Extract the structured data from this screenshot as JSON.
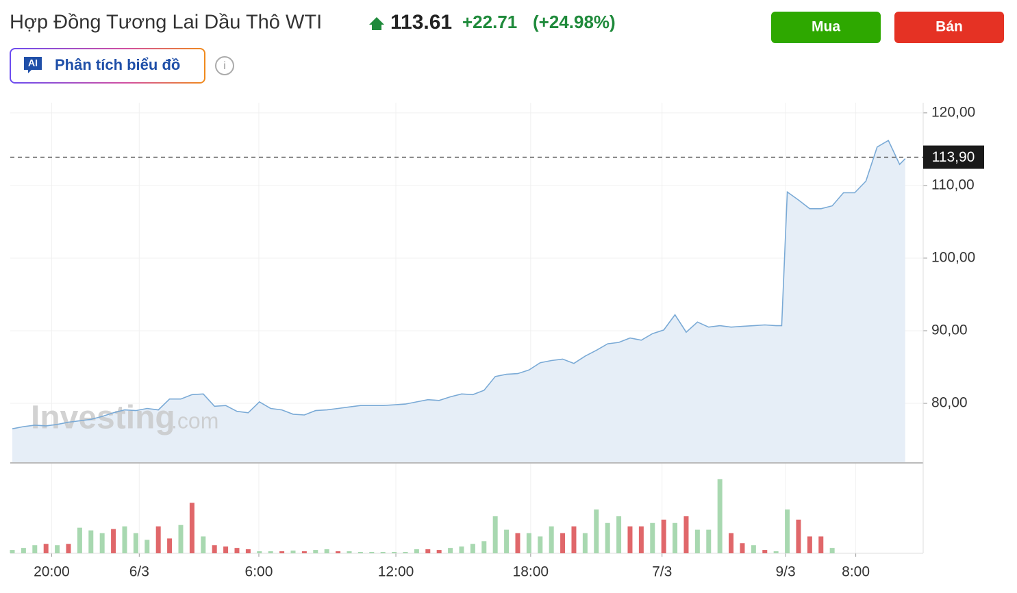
{
  "header": {
    "title": "Hợp Đồng Tương Lai Dầu Thô WTI",
    "price": "113.61",
    "change": "+22.71",
    "change_percent": "(+24.98%)",
    "buy": "Mua",
    "sell": "Bán",
    "ai_badge": "AI",
    "ai_button": "Phân tích biểu đồ",
    "info": "i"
  },
  "chart_data": {
    "type": "line",
    "color": "#7aaad6",
    "fill": "#e6eef7",
    "grid": true,
    "watermark": {
      "brand": "Investing",
      "suffix": ".com"
    },
    "x": [
      0,
      2,
      4,
      6,
      8,
      10,
      12,
      14,
      16,
      18,
      20,
      22,
      24,
      26,
      28,
      30,
      32,
      34,
      36,
      38,
      40,
      42,
      44,
      46,
      48,
      50,
      52,
      54,
      56,
      58,
      60,
      62,
      64,
      66,
      68,
      70,
      72,
      74,
      76,
      78,
      80,
      82,
      84,
      86,
      88,
      90,
      92,
      94,
      96,
      98,
      100,
      102,
      104,
      106,
      108,
      110,
      112,
      114,
      116,
      118,
      120,
      122,
      124,
      126,
      128,
      130,
      132,
      134,
      136,
      137,
      138,
      140,
      142,
      144,
      146,
      148,
      150,
      152,
      154,
      156,
      158,
      159
    ],
    "values": [
      76.5,
      76.8,
      77.0,
      76.9,
      77.1,
      77.4,
      77.6,
      77.8,
      78.2,
      78.7,
      79.1,
      79.0,
      79.3,
      79.1,
      80.6,
      80.6,
      81.2,
      81.3,
      79.6,
      79.7,
      78.9,
      78.7,
      80.2,
      79.3,
      79.1,
      78.5,
      78.4,
      79.0,
      79.1,
      79.3,
      79.5,
      79.7,
      79.7,
      79.7,
      79.8,
      79.9,
      80.2,
      80.5,
      80.4,
      80.9,
      81.3,
      81.2,
      81.8,
      83.7,
      84.0,
      84.1,
      84.6,
      85.6,
      85.9,
      86.1,
      85.5,
      86.5,
      87.3,
      88.2,
      88.4,
      89.0,
      88.7,
      89.6,
      90.1,
      92.2,
      89.8,
      91.2,
      90.5,
      90.7,
      90.5,
      90.6,
      90.7,
      90.8,
      90.7,
      90.7,
      109.1,
      108.0,
      106.8,
      106.8,
      107.2,
      109.0,
      109.0,
      110.6,
      115.3,
      116.2,
      112.9,
      113.7
    ],
    "xlim": [
      0,
      162.2
    ],
    "ylim": [
      71.8,
      121.4
    ],
    "xticks": [
      {
        "value": 7,
        "label": "20:00"
      },
      {
        "value": 22.6,
        "label": "6/3"
      },
      {
        "value": 43.9,
        "label": "6:00"
      },
      {
        "value": 68.3,
        "label": "12:00"
      },
      {
        "value": 92.3,
        "label": "18:00"
      },
      {
        "value": 115.7,
        "label": "7/3"
      },
      {
        "value": 137.7,
        "label": "9/3"
      },
      {
        "value": 150.2,
        "label": "8:00"
      }
    ],
    "yticks": [
      {
        "value": 80,
        "label": "80,00"
      },
      {
        "value": 90,
        "label": "90,00"
      },
      {
        "value": 100,
        "label": "100,00"
      },
      {
        "value": 110,
        "label": "110,00"
      },
      {
        "value": 120,
        "label": "120,00"
      }
    ],
    "last_price": {
      "value": 113.9,
      "label": "113,90"
    },
    "volume": {
      "up_color": "#a8d8b0",
      "down_color": "#e0676a",
      "ylim": [
        0,
        120
      ],
      "x": [
        0,
        2,
        4,
        6,
        8,
        10,
        12,
        14,
        16,
        18,
        20,
        22,
        24,
        26,
        28,
        30,
        32,
        34,
        36,
        38,
        40,
        42,
        44,
        46,
        48,
        50,
        52,
        54,
        56,
        58,
        60,
        62,
        64,
        66,
        68,
        70,
        72,
        74,
        76,
        78,
        80,
        82,
        84,
        86,
        88,
        90,
        92,
        94,
        96,
        98,
        100,
        102,
        104,
        106,
        108,
        110,
        112,
        114,
        116,
        118,
        120,
        122,
        124,
        126,
        128,
        130,
        132,
        134,
        136,
        138,
        140,
        142,
        144,
        146
      ],
      "values": [
        5,
        8,
        12,
        14,
        12,
        14,
        38,
        34,
        30,
        36,
        40,
        30,
        20,
        40,
        22,
        42,
        75,
        25,
        12,
        10,
        8,
        6,
        3,
        3,
        3,
        4,
        3,
        5,
        6,
        3,
        3,
        2,
        2,
        2,
        2,
        2,
        6,
        6,
        5,
        8,
        10,
        14,
        18,
        55,
        35,
        30,
        30,
        25,
        40,
        30,
        40,
        30,
        65,
        45,
        55,
        40,
        40,
        45,
        50,
        45,
        55,
        35,
        35,
        110,
        30,
        15,
        12,
        5,
        3,
        65,
        50,
        25,
        25,
        8
      ],
      "up": [
        true,
        true,
        true,
        false,
        true,
        false,
        true,
        true,
        true,
        false,
        true,
        true,
        true,
        false,
        false,
        true,
        false,
        true,
        false,
        false,
        false,
        false,
        true,
        true,
        false,
        true,
        false,
        true,
        true,
        false,
        true,
        true,
        true,
        true,
        true,
        true,
        true,
        false,
        false,
        true,
        true,
        true,
        true,
        true,
        true,
        false,
        true,
        true,
        true,
        false,
        false,
        true,
        true,
        true,
        true,
        false,
        false,
        true,
        false,
        true,
        false,
        true,
        true,
        true,
        false,
        false,
        true,
        false,
        true,
        true,
        false,
        false,
        false,
        true
      ]
    }
  }
}
